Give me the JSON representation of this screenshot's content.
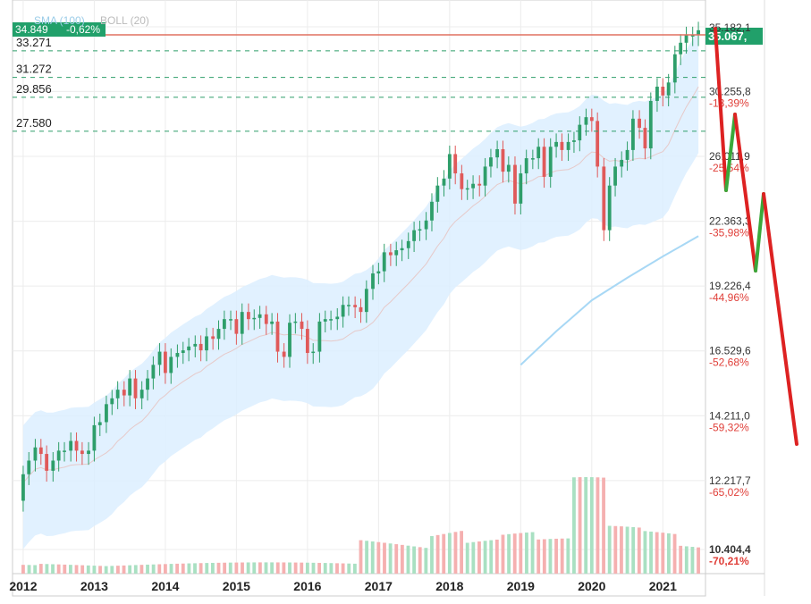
{
  "header": {
    "current_price": "34.849",
    "change_pct": "-0,62%",
    "indicators": [
      "SMA (100)",
      "BOLL (20)"
    ]
  },
  "price_tag": "35.067,",
  "colors": {
    "up": "#2e9e6a",
    "down": "#e05a5a",
    "tag_bg": "#21a06a",
    "boll_fill": "#dcefff",
    "sma": "#a8d8f5",
    "level_line": "#2e9e6a",
    "annotation_red": "#dd2222",
    "annotation_green": "#3aa83a",
    "volume_up": "#a9e0c2",
    "volume_down": "#f5b0b0"
  },
  "chart_data": {
    "type": "candlestick",
    "x_range": [
      2011.85,
      2021.6
    ],
    "years": [
      "2012",
      "2013",
      "2014",
      "2015",
      "2016",
      "2017",
      "2018",
      "2019",
      "2020",
      "2021"
    ],
    "y_axis_scale": "log",
    "y_ticks": [
      {
        "value": 35182.1,
        "label": "35.182,1",
        "pct": ""
      },
      {
        "value": 30255.8,
        "label": "30.255,8",
        "pct": "-13,39%"
      },
      {
        "value": 26011.9,
        "label": "26.011,9",
        "pct": "-25,54%"
      },
      {
        "value": 22363.3,
        "label": "22.363,3",
        "pct": "-35,98%"
      },
      {
        "value": 19226.4,
        "label": "19.226,4",
        "pct": "-44,96%"
      },
      {
        "value": 16529.6,
        "label": "16.529,6",
        "pct": "-52,68%"
      },
      {
        "value": 14211.0,
        "label": "14.211,0",
        "pct": "-59,32%"
      },
      {
        "value": 12217.7,
        "label": "12.217,7",
        "pct": "-65,02%"
      },
      {
        "value": 10404.4,
        "label": "10.404,4",
        "pct": "-70,21%"
      }
    ],
    "levels": [
      {
        "value": 33271,
        "label": "33.271"
      },
      {
        "value": 31272,
        "label": "31.272"
      },
      {
        "value": 29856,
        "label": "29.856"
      },
      {
        "value": 27580,
        "label": "27.580"
      }
    ],
    "close_series": [
      [
        2012.0,
        12400
      ],
      [
        2012.08,
        12800
      ],
      [
        2012.17,
        13200
      ],
      [
        2012.25,
        13000
      ],
      [
        2012.33,
        12500
      ],
      [
        2012.42,
        12800
      ],
      [
        2012.5,
        13100
      ],
      [
        2012.58,
        13100
      ],
      [
        2012.67,
        13400
      ],
      [
        2012.75,
        13100
      ],
      [
        2012.83,
        13000
      ],
      [
        2012.92,
        13100
      ],
      [
        2013.0,
        13900
      ],
      [
        2013.08,
        14000
      ],
      [
        2013.17,
        14600
      ],
      [
        2013.25,
        14800
      ],
      [
        2013.33,
        15100
      ],
      [
        2013.42,
        14900
      ],
      [
        2013.5,
        15500
      ],
      [
        2013.58,
        14800
      ],
      [
        2013.67,
        15100
      ],
      [
        2013.75,
        15500
      ],
      [
        2013.83,
        16000
      ],
      [
        2013.92,
        16500
      ],
      [
        2014.0,
        15700
      ],
      [
        2014.08,
        16300
      ],
      [
        2014.17,
        16450
      ],
      [
        2014.25,
        16550
      ],
      [
        2014.33,
        16700
      ],
      [
        2014.42,
        16800
      ],
      [
        2014.5,
        16550
      ],
      [
        2014.58,
        17100
      ],
      [
        2014.67,
        17000
      ],
      [
        2014.75,
        17400
      ],
      [
        2014.83,
        17800
      ],
      [
        2014.92,
        17800
      ],
      [
        2015.0,
        17200
      ],
      [
        2015.08,
        18100
      ],
      [
        2015.17,
        17800
      ],
      [
        2015.25,
        17850
      ],
      [
        2015.33,
        18000
      ],
      [
        2015.42,
        17600
      ],
      [
        2015.5,
        17700
      ],
      [
        2015.58,
        16500
      ],
      [
        2015.67,
        16300
      ],
      [
        2015.75,
        17650
      ],
      [
        2015.83,
        17700
      ],
      [
        2015.92,
        17400
      ],
      [
        2016.0,
        16450
      ],
      [
        2016.08,
        16500
      ],
      [
        2016.17,
        17700
      ],
      [
        2016.25,
        17800
      ],
      [
        2016.33,
        17800
      ],
      [
        2016.42,
        17900
      ],
      [
        2016.5,
        18400
      ],
      [
        2016.58,
        18400
      ],
      [
        2016.67,
        18300
      ],
      [
        2016.75,
        18100
      ],
      [
        2016.83,
        19100
      ],
      [
        2016.92,
        19800
      ],
      [
        2017.0,
        19900
      ],
      [
        2017.08,
        20800
      ],
      [
        2017.17,
        20660
      ],
      [
        2017.25,
        20900
      ],
      [
        2017.33,
        21000
      ],
      [
        2017.42,
        21350
      ],
      [
        2017.5,
        21900
      ],
      [
        2017.58,
        21950
      ],
      [
        2017.67,
        22400
      ],
      [
        2017.75,
        23400
      ],
      [
        2017.83,
        24300
      ],
      [
        2017.92,
        24700
      ],
      [
        2018.0,
        26150
      ],
      [
        2018.08,
        25000
      ],
      [
        2018.17,
        24100
      ],
      [
        2018.25,
        24150
      ],
      [
        2018.33,
        24400
      ],
      [
        2018.42,
        24300
      ],
      [
        2018.5,
        25400
      ],
      [
        2018.58,
        25950
      ],
      [
        2018.67,
        26450
      ],
      [
        2018.75,
        25100
      ],
      [
        2018.83,
        25500
      ],
      [
        2018.92,
        23300
      ],
      [
        2019.0,
        25000
      ],
      [
        2019.08,
        25900
      ],
      [
        2019.17,
        25900
      ],
      [
        2019.25,
        26600
      ],
      [
        2019.33,
        24800
      ],
      [
        2019.42,
        26600
      ],
      [
        2019.5,
        26900
      ],
      [
        2019.58,
        26400
      ],
      [
        2019.67,
        26900
      ],
      [
        2019.75,
        27000
      ],
      [
        2019.83,
        28000
      ],
      [
        2019.92,
        28500
      ],
      [
        2020.0,
        28250
      ],
      [
        2020.08,
        25400
      ],
      [
        2020.17,
        21900
      ],
      [
        2020.25,
        24300
      ],
      [
        2020.33,
        25400
      ],
      [
        2020.42,
        25800
      ],
      [
        2020.5,
        26400
      ],
      [
        2020.58,
        28400
      ],
      [
        2020.67,
        27800
      ],
      [
        2020.75,
        26500
      ],
      [
        2020.83,
        29600
      ],
      [
        2020.92,
        30600
      ],
      [
        2021.0,
        29980
      ],
      [
        2021.08,
        30900
      ],
      [
        2021.17,
        33000
      ],
      [
        2021.25,
        33900
      ],
      [
        2021.33,
        34500
      ],
      [
        2021.42,
        34500
      ],
      [
        2021.5,
        34900
      ]
    ],
    "volume": [
      [
        2012.0,
        0.06
      ],
      [
        2012.5,
        0.07
      ],
      [
        2013.0,
        0.07
      ],
      [
        2013.5,
        0.07
      ],
      [
        2014.0,
        0.07
      ],
      [
        2014.5,
        0.07
      ],
      [
        2015.0,
        0.07
      ],
      [
        2015.5,
        0.07
      ],
      [
        2016.0,
        0.07
      ],
      [
        2016.5,
        0.07
      ],
      [
        2017.0,
        0.24
      ],
      [
        2017.5,
        0.24
      ],
      [
        2018.0,
        0.34
      ],
      [
        2018.5,
        0.24
      ],
      [
        2019.0,
        0.27
      ],
      [
        2019.5,
        0.22
      ],
      [
        2020.0,
        0.6
      ],
      [
        2020.5,
        0.3
      ],
      [
        2021.0,
        0.28
      ],
      [
        2021.5,
        0.2
      ]
    ]
  }
}
